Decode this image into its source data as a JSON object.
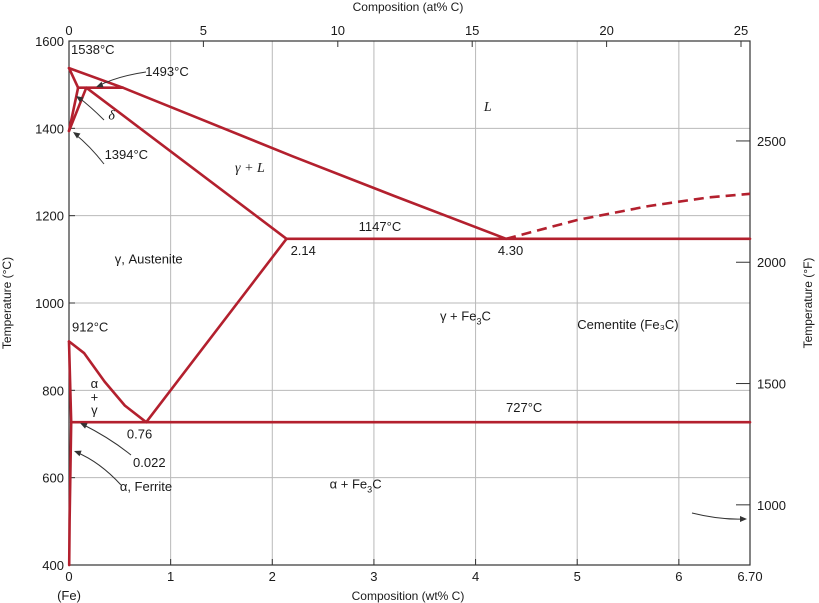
{
  "chart_data": {
    "type": "line",
    "title": "",
    "xlabel": "Composition (wt% C)",
    "x2label": "Composition (at% C)",
    "ylabel": "Temperature (°C)",
    "y2label": "Temperature (°F)",
    "xlim": [
      0,
      6.7
    ],
    "ylim": [
      400,
      1600
    ],
    "x_ticks": [
      {
        "value": 0,
        "label": "0"
      },
      {
        "value": 1,
        "label": "1"
      },
      {
        "value": 2,
        "label": "2"
      },
      {
        "value": 3,
        "label": "3"
      },
      {
        "value": 4,
        "label": "4"
      },
      {
        "value": 5,
        "label": "5"
      },
      {
        "value": 6,
        "label": "6"
      },
      {
        "value": 6.7,
        "label": "6.70"
      }
    ],
    "x_sublabel": "(Fe)",
    "y_ticks": [
      {
        "value": 400,
        "label": "400"
      },
      {
        "value": 600,
        "label": "600"
      },
      {
        "value": 800,
        "label": "800"
      },
      {
        "value": 1000,
        "label": "1000"
      },
      {
        "value": 1200,
        "label": "1200"
      },
      {
        "value": 1400,
        "label": "1400"
      },
      {
        "value": 1600,
        "label": "1600"
      }
    ],
    "x2_ticks": [
      {
        "value": 0,
        "label": "0"
      },
      {
        "value": 5,
        "label": "5"
      },
      {
        "value": 10,
        "label": "10"
      },
      {
        "value": 15,
        "label": "15"
      },
      {
        "value": 20,
        "label": "20"
      },
      {
        "value": 25,
        "label": "25"
      }
    ],
    "y2_ticks": [
      {
        "value": 1000,
        "label": "1000"
      },
      {
        "value": 1500,
        "label": "1500"
      },
      {
        "value": 2000,
        "label": "2000"
      },
      {
        "value": 2500,
        "label": "2500"
      }
    ],
    "grid": true,
    "line_color": "#b3202e",
    "series": [
      {
        "id": "delta-boundary-left",
        "points": [
          [
            0,
            1538
          ],
          [
            0.09,
            1493
          ]
        ]
      },
      {
        "id": "delta-boundary-right",
        "points": [
          [
            0,
            1394
          ],
          [
            0.09,
            1493
          ]
        ]
      },
      {
        "id": "delta-liquidus",
        "points": [
          [
            0,
            1538
          ],
          [
            0.53,
            1493
          ]
        ]
      },
      {
        "id": "peritectic-line",
        "points": [
          [
            0.09,
            1493
          ],
          [
            0.53,
            1493
          ]
        ]
      },
      {
        "id": "austenite-delta-boundary",
        "points": [
          [
            0,
            1394
          ],
          [
            0.17,
            1493
          ]
        ]
      },
      {
        "id": "liquidus",
        "points": [
          [
            0.53,
            1493
          ],
          [
            1.2,
            1430
          ],
          [
            2.2,
            1336
          ],
          [
            3.2,
            1245
          ],
          [
            4.3,
            1147
          ]
        ]
      },
      {
        "id": "solidus",
        "points": [
          [
            0.17,
            1493
          ],
          [
            2.14,
            1147
          ]
        ]
      },
      {
        "id": "eutectic-line",
        "points": [
          [
            2.14,
            1147
          ],
          [
            6.7,
            1147
          ]
        ]
      },
      {
        "id": "acm-line",
        "points": [
          [
            0.76,
            727
          ],
          [
            2.14,
            1147
          ]
        ]
      },
      {
        "id": "a3-line",
        "points": [
          [
            0,
            912
          ],
          [
            0.15,
            885
          ],
          [
            0.35,
            820
          ],
          [
            0.55,
            765
          ],
          [
            0.76,
            727
          ]
        ]
      },
      {
        "id": "alpha-solvus-upper",
        "points": [
          [
            0,
            912
          ],
          [
            0.022,
            727
          ]
        ]
      },
      {
        "id": "eutectoid-line",
        "points": [
          [
            0.022,
            727
          ],
          [
            6.7,
            727
          ]
        ]
      },
      {
        "id": "alpha-solvus-lower",
        "points": [
          [
            0.022,
            727
          ],
          [
            0.013,
            600
          ],
          [
            0.006,
            500
          ],
          [
            0.002,
            400
          ]
        ]
      }
    ],
    "dashed_series": [
      {
        "id": "cementite-liquidus",
        "points": [
          [
            4.3,
            1147
          ],
          [
            5.0,
            1190
          ],
          [
            5.7,
            1222
          ],
          [
            6.3,
            1242
          ],
          [
            6.7,
            1250
          ]
        ]
      }
    ],
    "annotations": [
      {
        "id": "t1538",
        "text": "1538°C",
        "x": 0.02,
        "y": 1570
      },
      {
        "id": "t1493",
        "text": "1493°C",
        "x": 0.75,
        "y": 1520
      },
      {
        "id": "t1394",
        "text": "1394°C",
        "x": 0.35,
        "y": 1330
      },
      {
        "id": "t1147",
        "text": "1147°C",
        "x": 2.85,
        "y": 1165
      },
      {
        "id": "t912",
        "text": "912°C",
        "x": 0.03,
        "y": 935
      },
      {
        "id": "t727",
        "text": "727°C",
        "x": 4.3,
        "y": 750
      },
      {
        "id": "c214",
        "text": "2.14",
        "x": 2.18,
        "y": 1110
      },
      {
        "id": "c430",
        "text": "4.30",
        "x": 4.22,
        "y": 1110
      },
      {
        "id": "c076",
        "text": "0.76",
        "x": 0.57,
        "y": 690
      },
      {
        "id": "c0022",
        "text": "0.022",
        "x": 0.63,
        "y": 625
      },
      {
        "id": "alpha-ferrite",
        "text": "α, Ferrite",
        "x": 0.5,
        "y": 570
      },
      {
        "id": "gamma-austenite",
        "text": "γ, Austenite",
        "x": 0.45,
        "y": 1090
      },
      {
        "id": "cementite",
        "text": "Cementite (Fe₃C)",
        "x": 5.0,
        "y": 940
      }
    ],
    "region_labels": [
      {
        "id": "L",
        "text": "L",
        "x": 4.12,
        "y": 1440,
        "style": "italic"
      },
      {
        "id": "gamma-plus-L",
        "text": "γ + L",
        "x": 1.78,
        "y": 1300,
        "style": "italic"
      },
      {
        "id": "gamma-plus-fe3c",
        "text": "γ + Fe",
        "sub": "3",
        "tail": "C",
        "x": 3.9,
        "y": 960
      },
      {
        "id": "alpha-plus-fe3c",
        "text": "α + Fe",
        "sub": "3",
        "tail": "C",
        "x": 2.82,
        "y": 575
      },
      {
        "id": "delta",
        "text": "δ",
        "x": 0.42,
        "y": 1420,
        "style": "italic"
      },
      {
        "id": "alpha-gamma-a",
        "text": "α",
        "x": 0.25,
        "y": 805
      },
      {
        "id": "alpha-gamma-plus",
        "text": "+",
        "x": 0.25,
        "y": 775
      },
      {
        "id": "alpha-gamma-g",
        "text": "γ",
        "x": 0.25,
        "y": 745
      }
    ]
  }
}
